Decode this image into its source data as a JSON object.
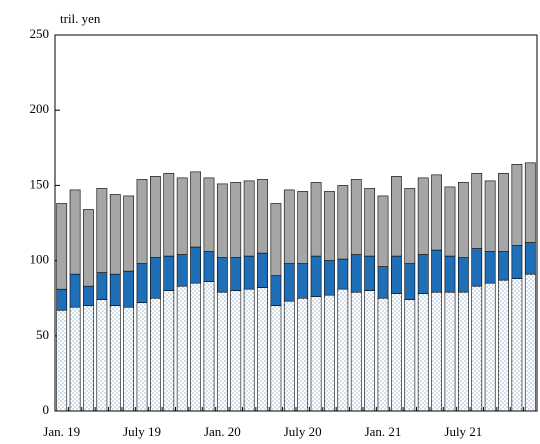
{
  "chart_data": {
    "type": "stacked_bar",
    "ylabel": "tril. yen",
    "categories": [
      "Jan. 19",
      null,
      null,
      null,
      null,
      null,
      "July 19",
      null,
      null,
      null,
      null,
      null,
      "Jan. 20",
      null,
      null,
      null,
      null,
      null,
      "July 20",
      null,
      null,
      null,
      null,
      null,
      "Jan. 21",
      null,
      null,
      null,
      null,
      null,
      "July 21",
      null,
      null,
      null,
      null,
      null
    ],
    "series": [
      {
        "color": "#ffffff",
        "pattern": "dots",
        "values": [
          67,
          69,
          70,
          74,
          70,
          69,
          72,
          75,
          80,
          83,
          85,
          86,
          79,
          80,
          81,
          82,
          70,
          73,
          75,
          76,
          77,
          81,
          79,
          80,
          75,
          78,
          74,
          78,
          79,
          79,
          79,
          83,
          85,
          87,
          88,
          91
        ]
      },
      {
        "color": "#1f6fb8",
        "values": [
          14,
          22,
          13,
          18,
          21,
          24,
          26,
          27,
          23,
          21,
          24,
          20,
          23,
          22,
          22,
          23,
          20,
          25,
          23,
          27,
          23,
          20,
          25,
          23,
          21,
          25,
          24,
          26,
          28,
          24,
          23,
          25,
          21,
          19,
          22,
          21
        ]
      },
      {
        "color": "#a6a6a6",
        "values": [
          57,
          56,
          51,
          56,
          53,
          50,
          56,
          54,
          55,
          51,
          50,
          49,
          49,
          50,
          50,
          49,
          48,
          49,
          48,
          49,
          46,
          49,
          50,
          45,
          47,
          53,
          50,
          51,
          50,
          46,
          50,
          50,
          47,
          52,
          54,
          53
        ]
      }
    ],
    "ylim": [
      0,
      250
    ],
    "yticks": [
      0,
      50,
      100,
      150,
      200,
      250
    ]
  }
}
